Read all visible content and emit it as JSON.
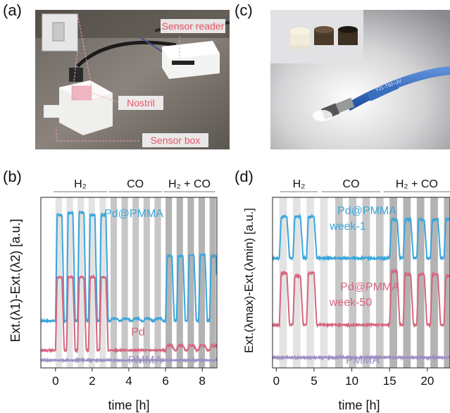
{
  "panels": {
    "a": {
      "letter": "(a)",
      "labels": {
        "reader": "Sensor reader",
        "nostril": "Nostril",
        "box": "Sensor box"
      }
    },
    "b": {
      "letter": "(b)"
    },
    "c": {
      "letter": "(c)",
      "cable_text": "Y21-T60-UV"
    },
    "d": {
      "letter": "(d)"
    }
  },
  "colors": {
    "pd_pmma": "#3aa6dc",
    "pd": "#d6667e",
    "pmma": "#9d8ec4",
    "box_label": "#e8556a"
  },
  "chart_data": [
    {
      "type": "line",
      "panel": "b",
      "xlabel": "time [h]",
      "ylabel": "Ext.(λ1)-Ext.(λ2) [a.u.]",
      "xlim": [
        -0.8,
        8.8
      ],
      "xticks": [
        "0",
        "2",
        "4",
        "6",
        "8"
      ],
      "grid": false,
      "segments": [
        {
          "label": "H₂",
          "start": -0.1,
          "end": 2.8
        },
        {
          "label": "CO",
          "start": 2.9,
          "end": 5.8
        },
        {
          "label": "H₂ + CO",
          "start": 5.9,
          "end": 8.7
        }
      ],
      "pulses": [
        0.0,
        0.6,
        1.2,
        1.8,
        2.4,
        3.0,
        3.6,
        4.2,
        4.8,
        5.4,
        6.0,
        6.6,
        7.2,
        7.8,
        8.4
      ],
      "pulse_width": 0.35,
      "series": [
        {
          "name": "Pd@PMMA",
          "baseline": 0.35,
          "responses": [
            0.9,
            0.92,
            0.92,
            0.9,
            0.9,
            0.02,
            0.02,
            0.02,
            0.02,
            0.02,
            0.55,
            0.55,
            0.56,
            0.56,
            0.55
          ]
        },
        {
          "name": "Pd",
          "baseline": 0.1,
          "responses": [
            0.62,
            0.62,
            0.62,
            0.62,
            0.62,
            0.0,
            0.0,
            0.0,
            0.0,
            0.0,
            0.04,
            0.04,
            0.04,
            0.04,
            0.04
          ]
        },
        {
          "name": "PMMA",
          "baseline": 0.015,
          "responses": [
            0,
            0,
            0,
            0,
            0,
            0,
            0,
            0,
            0,
            0,
            0,
            0,
            0,
            0,
            0
          ]
        }
      ]
    },
    {
      "type": "line",
      "panel": "d",
      "xlabel": "time [h]",
      "ylabel": "Ext.(λmax)-Ext.(λmin) [a.u.]",
      "xlim": [
        -0.5,
        23
      ],
      "xticks": [
        "0",
        "5",
        "10",
        "15",
        "20"
      ],
      "grid": false,
      "segments": [
        {
          "label": "H₂",
          "start": 0.5,
          "end": 5.5
        },
        {
          "label": "CO",
          "start": 6.0,
          "end": 13.8
        },
        {
          "label": "H₂ + CO",
          "start": 14.2,
          "end": 23
        }
      ],
      "pulses": [
        0.4,
        2.2,
        4.0,
        5.8,
        7.8,
        9.6,
        11.4,
        13.2,
        15.0,
        16.8,
        18.6,
        20.4,
        22.2
      ],
      "pulse_width": 1.0,
      "series": [
        {
          "name": "Pd@PMMA week-1",
          "baseline": 0.69,
          "responses": [
            0.28,
            0.28,
            0.28,
            0.0,
            0.0,
            0.0,
            0.0,
            0.0,
            0.26,
            0.26,
            0.26,
            0.26,
            0.26
          ]
        },
        {
          "name": "Pd@PMMA week-50",
          "baseline": 0.24,
          "responses": [
            0.35,
            0.33,
            0.35,
            0.0,
            0.0,
            0.0,
            0.0,
            0.0,
            0.36,
            0.34,
            0.34,
            0.34,
            0.33
          ]
        },
        {
          "name": "PMMA",
          "baseline": 0.02,
          "responses": [
            0,
            0,
            0,
            0,
            0,
            0,
            0,
            0,
            0,
            0,
            0,
            0,
            0
          ]
        }
      ]
    }
  ]
}
